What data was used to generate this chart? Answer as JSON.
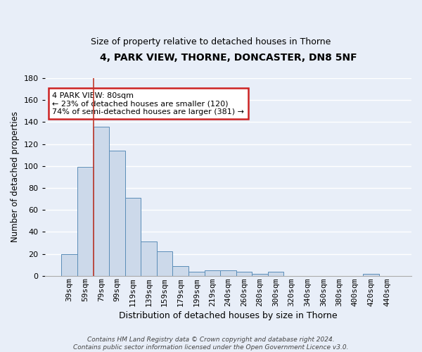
{
  "title1": "4, PARK VIEW, THORNE, DONCASTER, DN8 5NF",
  "title2": "Size of property relative to detached houses in Thorne",
  "xlabel": "Distribution of detached houses by size in Thorne",
  "ylabel": "Number of detached properties",
  "bar_labels": [
    "39sqm",
    "59sqm",
    "79sqm",
    "99sqm",
    "119sqm",
    "139sqm",
    "159sqm",
    "179sqm",
    "199sqm",
    "219sqm",
    "240sqm",
    "260sqm",
    "280sqm",
    "300sqm",
    "320sqm",
    "340sqm",
    "360sqm",
    "380sqm",
    "400sqm",
    "420sqm",
    "440sqm"
  ],
  "bar_values": [
    20,
    99,
    136,
    114,
    71,
    31,
    22,
    9,
    4,
    5,
    5,
    4,
    2,
    4,
    0,
    0,
    0,
    0,
    0,
    2,
    0
  ],
  "bar_color": "#ccd9ea",
  "bar_edge_color": "#5b8db8",
  "vline_color": "#c0392b",
  "annotation_text": "4 PARK VIEW: 80sqm\n← 23% of detached houses are smaller (120)\n74% of semi-detached houses are larger (381) →",
  "annotation_box_color": "#ffffff",
  "annotation_box_edge": "#cc2222",
  "ylim": [
    0,
    180
  ],
  "yticks": [
    0,
    20,
    40,
    60,
    80,
    100,
    120,
    140,
    160,
    180
  ],
  "footer": "Contains HM Land Registry data © Crown copyright and database right 2024.\nContains public sector information licensed under the Open Government Licence v3.0.",
  "bg_color": "#e8eef8",
  "grid_color": "#ffffff",
  "spine_color": "#aaaaaa"
}
